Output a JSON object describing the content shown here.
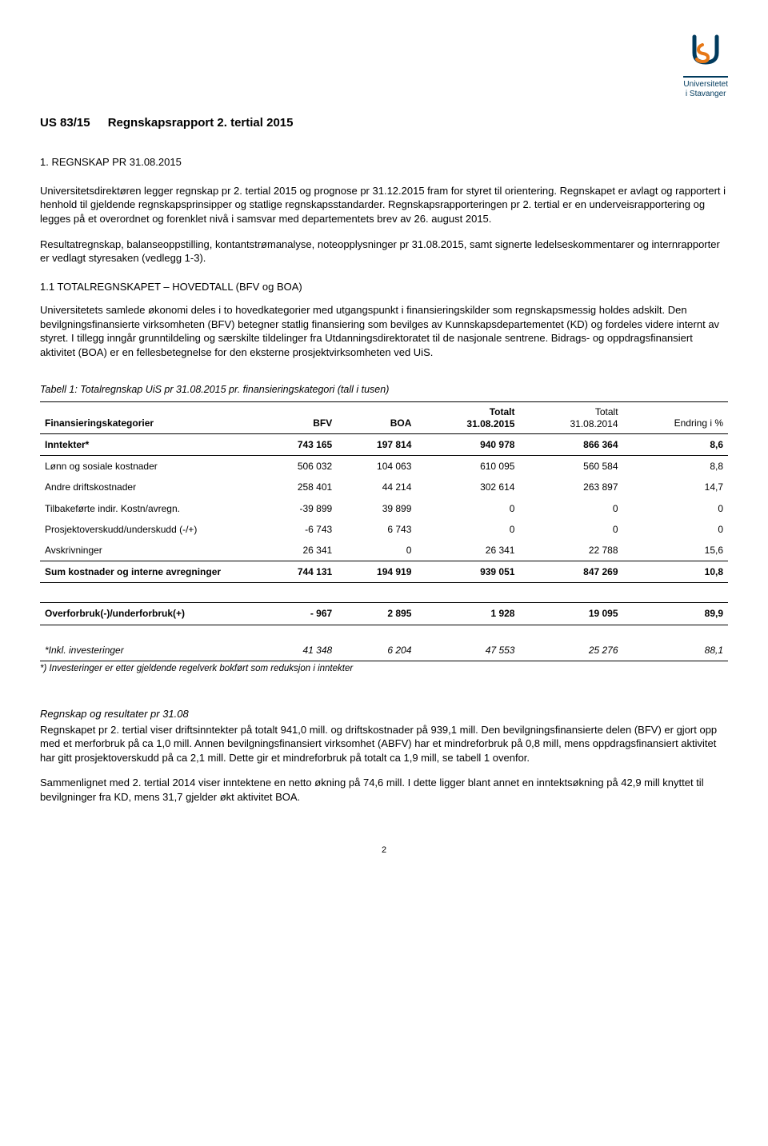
{
  "logo": {
    "name_line1": "Universitetet",
    "name_line2": "i Stavanger",
    "colors": {
      "dark": "#003a5d",
      "accent": "#e67817"
    }
  },
  "heading": {
    "number": "US 83/15",
    "title": "Regnskapsrapport 2. tertial 2015"
  },
  "section1": {
    "number": "1.",
    "title": "REGNSKAP PR 31.08.2015"
  },
  "para1": "Universitetsdirektøren legger regnskap pr 2. tertial 2015 og prognose pr 31.12.2015 fram for styret til orientering. Regnskapet er avlagt og rapportert i henhold til gjeldende regnskapsprinsipper og statlige regnskapsstandarder. Regnskapsrapporteringen pr 2. tertial er en underveisrapportering og legges på et overordnet og forenklet nivå i samsvar med departementets brev av 26. august 2015.",
  "para2": "Resultatregnskap, balanseoppstilling, kontantstrømanalyse, noteopplysninger pr 31.08.2015, samt signerte ledelseskommentarer og internrapporter er vedlagt styresaken (vedlegg 1-3).",
  "section11": {
    "title": "1.1 TOTALREGNSKAPET – HOVEDTALL (BFV og BOA)"
  },
  "para3": "Universitetets samlede økonomi deles i to hovedkategorier med utgangspunkt i finansieringskilder som regnskapsmessig holdes adskilt. Den bevilgningsfinansierte virksomheten (BFV) betegner statlig finansiering som bevilges av Kunnskapsdepartementet (KD) og fordeles videre internt av styret. I tillegg inngår grunntildeling og særskilte tildelinger fra Utdanningsdirektoratet til de nasjonale sentrene. Bidrags- og oppdragsfinansiert aktivitet (BOA) er en fellesbetegnelse for den eksterne prosjektvirksomheten ved UiS.",
  "table1": {
    "caption": "Tabell 1: Totalregnskap UiS pr 31.08.2015 pr. finansieringskategori (tall i tusen)",
    "columns": [
      "Finansieringskategorier",
      "BFV",
      "BOA",
      "Totalt 31.08.2015",
      "Totalt 31.08.2014",
      "Endring i %"
    ],
    "rows": [
      {
        "label": "Inntekter*",
        "bfv": "743 165",
        "boa": "197 814",
        "t2015": "940 978",
        "t2014": "866 364",
        "pct": "8,6",
        "bold": true,
        "sep_bottom": true
      },
      {
        "label": "Lønn og sosiale kostnader",
        "bfv": "506 032",
        "boa": "104 063",
        "t2015": "610 095",
        "t2014": "560 584",
        "pct": "8,8"
      },
      {
        "label": "Andre driftskostnader",
        "bfv": "258 401",
        "boa": "44 214",
        "t2015": "302 614",
        "t2014": "263 897",
        "pct": "14,7"
      },
      {
        "label": "Tilbakeførte indir. Kostn/avregn.",
        "bfv": "-39 899",
        "boa": "39 899",
        "t2015": "0",
        "t2014": "0",
        "pct": "0"
      },
      {
        "label": "Prosjektoverskudd/underskudd (-/+)",
        "bfv": "-6 743",
        "boa": "6 743",
        "t2015": "0",
        "t2014": "0",
        "pct": "0"
      },
      {
        "label": "Avskrivninger",
        "bfv": "26 341",
        "boa": "0",
        "t2015": "26 341",
        "t2014": "22 788",
        "pct": "15,6",
        "sep_bottom": true
      },
      {
        "label": "Sum kostnader og interne avregninger",
        "bfv": "744 131",
        "boa": "194 919",
        "t2015": "939 051",
        "t2014": "847 269",
        "pct": "10,8",
        "bold": true,
        "sep_bottom": true
      }
    ],
    "spacer": true,
    "rows2": [
      {
        "label": "Overforbruk(-)/underforbruk(+)",
        "bfv": "- 967",
        "boa": "2 895",
        "t2015": "1 928",
        "t2014": "19 095",
        "pct": "89,9",
        "bold": true,
        "sep_top": true,
        "sep_bottom": true
      }
    ],
    "rows3": [
      {
        "label": "*Inkl. investeringer",
        "bfv": "41 348",
        "boa": "6 204",
        "t2015": "47 553",
        "t2014": "25 276",
        "pct": "88,1",
        "italic": true,
        "thick_bottom": true
      }
    ],
    "footnote": "*) Investeringer er etter gjeldende regelverk bokført som reduksjon i inntekter"
  },
  "section2head": "Regnskap og resultater pr 31.08",
  "para4": "Regnskapet pr 2. tertial viser driftsinntekter på totalt 941,0 mill. og driftskostnader på 939,1 mill. Den bevilgningsfinansierte delen (BFV) er gjort opp med et merforbruk på ca 1,0 mill. Annen bevilgningsfinansiert virksomhet (ABFV) har et mindreforbruk på 0,8 mill, mens oppdragsfinansiert aktivitet har gitt prosjektoverskudd på ca 2,1 mill. Dette gir et mindreforbruk på totalt ca 1,9 mill, se tabell 1 ovenfor.",
  "para5": "Sammenlignet med 2. tertial 2014 viser inntektene en netto økning på 74,6 mill. I dette ligger blant annet en inntektsøkning på 42,9 mill knyttet til bevilgninger fra KD, mens 31,7 gjelder økt aktivitet BOA.",
  "page_number": "2"
}
